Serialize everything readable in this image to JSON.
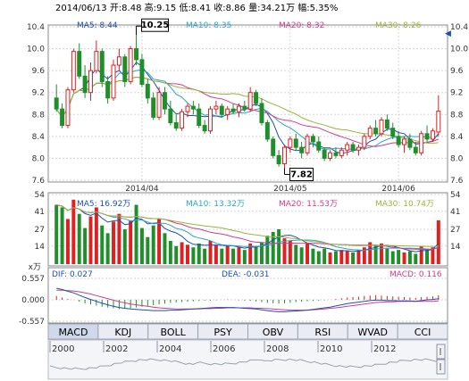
{
  "header": {
    "quote": "2014/06/13 开:8.48 高:9.15 低:8.41 收:8.86 量:34.21万 幅:5.35%"
  },
  "price_panel": {
    "ma_labels": [
      {
        "text": "MA5: 8.44",
        "color": "#1c4fb5"
      },
      {
        "text": "MA10: 8.35",
        "color": "#2aa6c6"
      },
      {
        "text": "MA20: 8.32",
        "color": "#d13a8e"
      },
      {
        "text": "MA30: 8.26",
        "color": "#9ab63a"
      }
    ],
    "y_ticks": [
      "10.4",
      "10.0",
      "9.6",
      "9.2",
      "8.8",
      "8.4",
      "8.0",
      "7.6"
    ],
    "y_tick_values": [
      10.4,
      10.0,
      9.6,
      9.2,
      8.8,
      8.4,
      8.0,
      7.6
    ],
    "date_labels": [
      "2014/04",
      "2014/05",
      "2014/06"
    ],
    "high_marker": "10.25",
    "low_marker": "7.82"
  },
  "volume_panel": {
    "ma_labels": [
      {
        "text": "MA5: 16.92万",
        "color": "#1c4fb5"
      },
      {
        "text": "MA10: 13.32万",
        "color": "#2aa6c6"
      },
      {
        "text": "MA20: 11.53万",
        "color": "#d13a8e"
      },
      {
        "text": "MA30: 10.74万",
        "color": "#9ab63a"
      }
    ],
    "y_ticks": [
      "54",
      "41",
      "27",
      "14"
    ],
    "y_tick_values": [
      54,
      41,
      27,
      14
    ],
    "unit": "x万"
  },
  "macd_panel": {
    "dif_label": "DIF: 0.027",
    "dea_label": "DEA: -0.031",
    "macd_label": "MACD: 0.116",
    "y_ticks": [
      "0.557",
      "0.000",
      "-0.557"
    ]
  },
  "tabs": [
    "MACD",
    "KDJ",
    "BOLL",
    "PSY",
    "OBV",
    "RSI",
    "WVAD",
    "CCI"
  ],
  "active_tab": "MACD",
  "timeline_years": [
    "2000",
    "2002",
    "2004",
    "2006",
    "2008",
    "2010",
    "2012"
  ],
  "colors": {
    "up": "#e02020",
    "down": "#1f8f2b",
    "grid": "#d5d5d5",
    "dark": "#111111"
  },
  "chart_data": {
    "type": "candlestick",
    "candles": [
      [
        9.1,
        9.35,
        8.85,
        8.9
      ],
      [
        8.9,
        9.0,
        8.55,
        8.6
      ],
      [
        8.6,
        9.3,
        8.55,
        9.25
      ],
      [
        9.25,
        10.0,
        9.2,
        9.95
      ],
      [
        9.95,
        10.1,
        9.45,
        9.5
      ],
      [
        9.5,
        9.7,
        9.1,
        9.2
      ],
      [
        9.2,
        9.75,
        9.05,
        9.6
      ],
      [
        9.6,
        10.15,
        9.55,
        9.95
      ],
      [
        9.95,
        10.0,
        9.3,
        9.4
      ],
      [
        9.4,
        9.5,
        9.0,
        9.1
      ],
      [
        9.1,
        9.8,
        9.05,
        9.7
      ],
      [
        9.7,
        10.0,
        9.6,
        9.85
      ],
      [
        9.85,
        9.9,
        9.3,
        9.4
      ],
      [
        9.4,
        10.05,
        9.35,
        10.0
      ],
      [
        10.0,
        10.25,
        9.7,
        9.8
      ],
      [
        9.8,
        9.9,
        9.3,
        9.35
      ],
      [
        9.35,
        9.45,
        9.0,
        9.1
      ],
      [
        9.1,
        9.2,
        8.7,
        8.75
      ],
      [
        8.75,
        9.3,
        8.7,
        9.2
      ],
      [
        9.2,
        9.3,
        8.8,
        8.9
      ],
      [
        8.9,
        9.05,
        8.6,
        8.65
      ],
      [
        8.65,
        8.8,
        8.5,
        8.55
      ],
      [
        8.55,
        8.9,
        8.5,
        8.85
      ],
      [
        8.85,
        9.0,
        8.75,
        8.95
      ],
      [
        8.95,
        9.05,
        8.8,
        8.9
      ],
      [
        8.9,
        9.0,
        8.55,
        8.6
      ],
      [
        8.6,
        8.7,
        8.45,
        8.5
      ],
      [
        8.5,
        8.95,
        8.45,
        8.9
      ],
      [
        8.9,
        9.05,
        8.8,
        8.95
      ],
      [
        8.95,
        9.0,
        8.75,
        8.8
      ],
      [
        8.8,
        8.95,
        8.7,
        8.9
      ],
      [
        8.9,
        9.0,
        8.8,
        8.85
      ],
      [
        8.85,
        9.0,
        8.75,
        8.95
      ],
      [
        8.95,
        9.05,
        8.85,
        8.9
      ],
      [
        8.9,
        9.3,
        8.85,
        9.2
      ],
      [
        9.2,
        9.25,
        8.95,
        9.0
      ],
      [
        9.0,
        9.1,
        8.6,
        8.65
      ],
      [
        8.65,
        8.7,
        8.3,
        8.35
      ],
      [
        8.35,
        8.4,
        8.0,
        8.05
      ],
      [
        8.05,
        8.15,
        7.85,
        7.9
      ],
      [
        7.9,
        8.25,
        7.82,
        8.2
      ],
      [
        8.2,
        8.4,
        8.1,
        8.35
      ],
      [
        8.35,
        8.45,
        8.15,
        8.2
      ],
      [
        8.2,
        8.3,
        8.0,
        8.1
      ],
      [
        8.1,
        8.45,
        8.05,
        8.4
      ],
      [
        8.4,
        8.45,
        8.2,
        8.3
      ],
      [
        8.3,
        8.4,
        8.1,
        8.15
      ],
      [
        8.15,
        8.2,
        7.95,
        8.0
      ],
      [
        8.0,
        8.15,
        7.95,
        8.1
      ],
      [
        8.1,
        8.2,
        8.0,
        8.05
      ],
      [
        8.05,
        8.2,
        8.0,
        8.15
      ],
      [
        8.15,
        8.3,
        8.05,
        8.25
      ],
      [
        8.25,
        8.3,
        8.1,
        8.15
      ],
      [
        8.15,
        8.25,
        8.05,
        8.2
      ],
      [
        8.2,
        8.45,
        8.15,
        8.4
      ],
      [
        8.4,
        8.6,
        8.35,
        8.55
      ],
      [
        8.55,
        8.7,
        8.4,
        8.45
      ],
      [
        8.45,
        8.75,
        8.4,
        8.7
      ],
      [
        8.7,
        8.8,
        8.5,
        8.55
      ],
      [
        8.55,
        8.65,
        8.35,
        8.4
      ],
      [
        8.4,
        8.5,
        8.2,
        8.25
      ],
      [
        8.25,
        8.4,
        8.1,
        8.35
      ],
      [
        8.35,
        8.45,
        8.15,
        8.2
      ],
      [
        8.2,
        8.3,
        8.05,
        8.1
      ],
      [
        8.1,
        8.5,
        8.05,
        8.45
      ],
      [
        8.45,
        8.6,
        8.3,
        8.35
      ],
      [
        8.35,
        8.55,
        8.3,
        8.5
      ],
      [
        8.48,
        9.15,
        8.41,
        8.86
      ]
    ],
    "volume": [
      46,
      44,
      35,
      50,
      39,
      28,
      37,
      44,
      30,
      24,
      33,
      39,
      27,
      34,
      46,
      28,
      21,
      30,
      35,
      24,
      18,
      14,
      17,
      15,
      13,
      16,
      12,
      18,
      15,
      12,
      14,
      12,
      13,
      11,
      16,
      14,
      17,
      22,
      25,
      27,
      20,
      18,
      15,
      13,
      16,
      12,
      10,
      12,
      9,
      10,
      11,
      10,
      9,
      11,
      13,
      17,
      15,
      16,
      12,
      10,
      11,
      9,
      10,
      8,
      14,
      12,
      13,
      34
    ],
    "macd_hist": [
      0.1,
      0.06,
      0.02,
      0.0,
      -0.05,
      -0.09,
      -0.12,
      -0.15,
      -0.18,
      -0.2,
      -0.22,
      -0.24,
      -0.23,
      -0.22,
      -0.2,
      -0.18,
      -0.16,
      -0.14,
      -0.12,
      -0.1,
      -0.08,
      -0.07,
      -0.06,
      -0.05,
      -0.04,
      -0.03,
      -0.02,
      -0.02,
      -0.01,
      0.0,
      0.01,
      0.0,
      -0.01,
      -0.02,
      -0.03,
      -0.04,
      -0.06,
      -0.08,
      -0.09,
      -0.1,
      -0.09,
      -0.08,
      -0.06,
      -0.05,
      -0.04,
      -0.03,
      -0.02,
      -0.01,
      0.0,
      0.02,
      0.04,
      0.06,
      0.07,
      0.08,
      0.1,
      0.11,
      0.12,
      0.11,
      0.1,
      0.09,
      0.08,
      0.07,
      0.06,
      0.05,
      0.07,
      0.08,
      0.09,
      0.116
    ],
    "dif": [
      0.3,
      0.27,
      0.22,
      0.18,
      0.12,
      0.06,
      0.01,
      -0.04,
      -0.09,
      -0.13,
      -0.17,
      -0.2,
      -0.22,
      -0.24,
      -0.25,
      -0.26,
      -0.27,
      -0.28,
      -0.28,
      -0.28,
      -0.27,
      -0.27,
      -0.26,
      -0.25,
      -0.24,
      -0.23,
      -0.22,
      -0.21,
      -0.2,
      -0.2,
      -0.2,
      -0.2,
      -0.21,
      -0.22,
      -0.23,
      -0.24,
      -0.26,
      -0.28,
      -0.3,
      -0.31,
      -0.31,
      -0.3,
      -0.29,
      -0.28,
      -0.27,
      -0.25,
      -0.23,
      -0.21,
      -0.19,
      -0.16,
      -0.13,
      -0.1,
      -0.08,
      -0.06,
      -0.04,
      -0.02,
      -0.01,
      -0.01,
      -0.02,
      -0.02,
      -0.03,
      -0.03,
      -0.03,
      -0.04,
      -0.02,
      0.0,
      0.01,
      0.027
    ],
    "dea": [
      0.25,
      0.25,
      0.24,
      0.23,
      0.21,
      0.18,
      0.15,
      0.11,
      0.07,
      0.03,
      -0.01,
      -0.05,
      -0.08,
      -0.11,
      -0.13,
      -0.15,
      -0.17,
      -0.19,
      -0.21,
      -0.22,
      -0.23,
      -0.24,
      -0.24,
      -0.24,
      -0.24,
      -0.24,
      -0.23,
      -0.23,
      -0.22,
      -0.22,
      -0.21,
      -0.21,
      -0.21,
      -0.21,
      -0.21,
      -0.22,
      -0.22,
      -0.23,
      -0.24,
      -0.25,
      -0.26,
      -0.27,
      -0.27,
      -0.27,
      -0.27,
      -0.26,
      -0.25,
      -0.24,
      -0.22,
      -0.21,
      -0.19,
      -0.17,
      -0.15,
      -0.13,
      -0.11,
      -0.09,
      -0.07,
      -0.06,
      -0.05,
      -0.05,
      -0.04,
      -0.04,
      -0.04,
      -0.04,
      -0.04,
      -0.04,
      -0.04,
      -0.031
    ],
    "price_ylim": [
      7.6,
      10.4
    ],
    "volume_ylim": [
      0,
      54
    ],
    "macd_ylim": [
      -0.557,
      0.557
    ]
  }
}
